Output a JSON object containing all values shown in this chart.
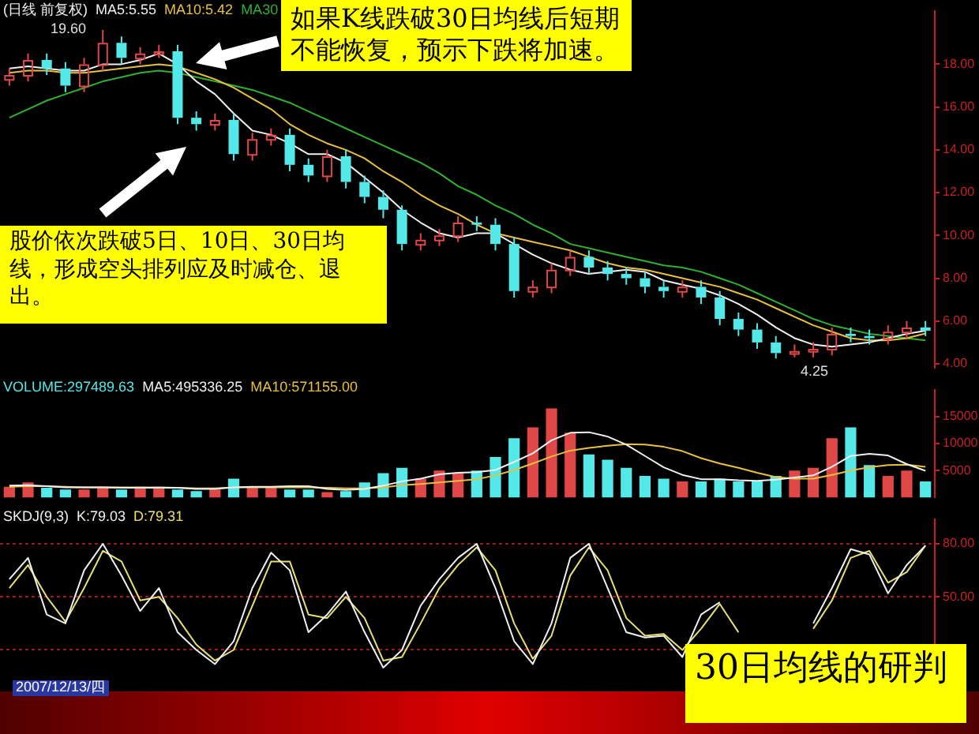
{
  "chart_data": [
    {
      "type": "candlestick",
      "title": "(日线 前复权)",
      "legend": "top left",
      "tick_labels": "y",
      "categories": [
        null,
        null,
        null,
        null,
        null,
        null,
        null,
        null,
        null,
        null,
        null,
        null,
        null,
        null,
        null,
        null,
        null,
        null,
        null,
        null,
        null,
        null,
        null,
        null,
        null,
        null,
        null,
        null,
        null,
        null,
        null,
        null,
        null,
        null,
        null,
        null,
        null,
        null,
        null,
        null,
        null,
        null,
        null,
        null,
        null,
        null,
        null,
        null,
        null,
        null
      ],
      "ohlc": [
        [
          17.3,
          17.8,
          17.0,
          17.5
        ],
        [
          17.5,
          18.5,
          17.2,
          18.2
        ],
        [
          18.2,
          18.5,
          17.5,
          17.8
        ],
        [
          17.8,
          18.1,
          16.7,
          17.0
        ],
        [
          17.0,
          18.3,
          16.7,
          18.0
        ],
        [
          18.0,
          19.6,
          17.7,
          19.0
        ],
        [
          19.0,
          19.3,
          18.0,
          18.3
        ],
        [
          18.3,
          18.8,
          18.0,
          18.5
        ],
        [
          18.5,
          18.9,
          18.3,
          18.6
        ],
        [
          18.6,
          18.9,
          15.2,
          15.5
        ],
        [
          15.5,
          15.8,
          14.9,
          15.2
        ],
        [
          15.2,
          15.7,
          14.9,
          15.4
        ],
        [
          15.4,
          15.7,
          13.5,
          13.8
        ],
        [
          13.8,
          14.8,
          13.5,
          14.5
        ],
        [
          14.5,
          15.0,
          14.2,
          14.7
        ],
        [
          14.7,
          15.0,
          13.0,
          13.3
        ],
        [
          13.3,
          13.6,
          12.5,
          12.8
        ],
        [
          12.8,
          14.0,
          12.5,
          13.7
        ],
        [
          13.7,
          14.0,
          12.2,
          12.5
        ],
        [
          12.5,
          12.8,
          11.5,
          11.8
        ],
        [
          11.8,
          12.1,
          10.8,
          11.2
        ],
        [
          11.2,
          11.4,
          9.3,
          9.6
        ],
        [
          9.6,
          10.1,
          9.3,
          9.8
        ],
        [
          9.8,
          10.3,
          9.5,
          10.0
        ],
        [
          10.0,
          10.9,
          9.7,
          10.6
        ],
        [
          10.6,
          10.9,
          10.2,
          10.5
        ],
        [
          10.5,
          10.8,
          9.3,
          9.6
        ],
        [
          9.6,
          9.9,
          7.1,
          7.4
        ],
        [
          7.4,
          7.9,
          7.1,
          7.6
        ],
        [
          7.6,
          8.7,
          7.3,
          8.4
        ],
        [
          8.4,
          9.3,
          8.1,
          9.0
        ],
        [
          9.0,
          9.3,
          8.2,
          8.5
        ],
        [
          8.5,
          8.8,
          7.9,
          8.2
        ],
        [
          8.2,
          8.5,
          7.7,
          8.0
        ],
        [
          8.0,
          8.3,
          7.3,
          7.6
        ],
        [
          7.6,
          7.9,
          7.1,
          7.4
        ],
        [
          7.4,
          7.9,
          7.1,
          7.6
        ],
        [
          7.6,
          7.9,
          6.8,
          7.1
        ],
        [
          7.1,
          7.4,
          5.8,
          6.1
        ],
        [
          6.1,
          6.4,
          5.3,
          5.6
        ],
        [
          5.6,
          5.9,
          4.7,
          5.0
        ],
        [
          5.0,
          5.3,
          4.25,
          4.5
        ],
        [
          4.5,
          4.9,
          4.3,
          4.6
        ],
        [
          4.6,
          5.0,
          4.3,
          4.7
        ],
        [
          4.7,
          5.7,
          4.4,
          5.4
        ],
        [
          5.4,
          5.7,
          5.0,
          5.3
        ],
        [
          5.3,
          5.6,
          4.9,
          5.2
        ],
        [
          5.2,
          5.8,
          4.9,
          5.5
        ],
        [
          5.5,
          6.0,
          5.2,
          5.7
        ],
        [
          5.7,
          6.0,
          5.3,
          5.55
        ]
      ],
      "colors": [
        "#e04848",
        "#e04848",
        "#54e8e8",
        "#54e8e8",
        "#e04848",
        "#e04848",
        "#54e8e8",
        "#e04848",
        "#e04848",
        "#54e8e8",
        "#54e8e8",
        "#e04848",
        "#54e8e8",
        "#e04848",
        "#e04848",
        "#54e8e8",
        "#54e8e8",
        "#e04848",
        "#54e8e8",
        "#54e8e8",
        "#54e8e8",
        "#54e8e8",
        "#e04848",
        "#e04848",
        "#e04848",
        "#54e8e8",
        "#54e8e8",
        "#54e8e8",
        "#e04848",
        "#e04848",
        "#e04848",
        "#54e8e8",
        "#54e8e8",
        "#54e8e8",
        "#54e8e8",
        "#54e8e8",
        "#e04848",
        "#54e8e8",
        "#54e8e8",
        "#54e8e8",
        "#54e8e8",
        "#54e8e8",
        "#e04848",
        "#e04848",
        "#e04848",
        "#54e8e8",
        "#54e8e8",
        "#e04848",
        "#e04848",
        "#54e8e8"
      ],
      "series": [
        {
          "type": "line",
          "name": "MA5:5.55",
          "color": "#f0f0f0",
          "values": [
            17.8,
            17.9,
            17.8,
            17.7,
            17.7,
            18.0,
            18.0,
            18.2,
            18.5,
            18.0,
            17.2,
            16.6,
            15.7,
            14.9,
            14.7,
            14.3,
            13.8,
            13.8,
            13.4,
            12.7,
            12.0,
            11.2,
            10.6,
            10.1,
            9.9,
            10.1,
            10.1,
            9.6,
            9.1,
            8.7,
            8.4,
            8.2,
            8.3,
            8.4,
            8.3,
            7.9,
            7.7,
            7.5,
            7.2,
            6.8,
            6.3,
            5.7,
            5.2,
            4.9,
            4.8,
            4.9,
            5.0,
            5.2,
            5.4,
            5.55
          ]
        },
        {
          "type": "line",
          "name": "MA10:5.42",
          "color": "#e8c040",
          "values": [
            17.6,
            17.7,
            17.7,
            17.6,
            17.6,
            17.7,
            17.8,
            17.9,
            18.0,
            17.9,
            17.6,
            17.3,
            16.9,
            16.4,
            15.9,
            15.2,
            14.7,
            14.3,
            14.0,
            13.6,
            13.0,
            12.5,
            11.9,
            11.4,
            11.0,
            10.5,
            10.1,
            9.9,
            9.7,
            9.5,
            9.3,
            9.0,
            8.7,
            8.5,
            8.4,
            8.2,
            8.0,
            7.8,
            7.6,
            7.3,
            7.0,
            6.6,
            6.2,
            5.8,
            5.5,
            5.2,
            5.1,
            5.1,
            5.2,
            5.42
          ]
        },
        {
          "type": "line",
          "name": "MA30",
          "color": "#30b030",
          "values": [
            15.5,
            15.9,
            16.3,
            16.6,
            16.9,
            17.2,
            17.4,
            17.6,
            17.7,
            17.6,
            17.4,
            17.2,
            17.0,
            16.8,
            16.5,
            16.2,
            15.8,
            15.4,
            15.0,
            14.6,
            14.2,
            13.8,
            13.4,
            12.9,
            12.3,
            11.9,
            11.4,
            11.0,
            10.5,
            10.1,
            9.6,
            9.4,
            9.2,
            9.0,
            8.8,
            8.6,
            8.5,
            8.3,
            8.0,
            7.7,
            7.3,
            6.9,
            6.5,
            6.1,
            5.8,
            5.6,
            5.4,
            5.3,
            5.2,
            5.1
          ]
        }
      ],
      "ylim": [
        3.8,
        20.5
      ],
      "yticks": [
        {
          "value": 4,
          "label": "4.00"
        },
        {
          "value": 6,
          "label": "6.00"
        },
        {
          "value": 8,
          "label": "8.00"
        },
        {
          "value": 10,
          "label": "10.00"
        },
        {
          "value": 12,
          "label": "12.00"
        },
        {
          "value": 14,
          "label": "14.00"
        },
        {
          "value": 16,
          "label": "16.00"
        },
        {
          "value": 18,
          "label": "18.00"
        }
      ],
      "annotations": [
        "如果K线跌破30日均线后短期不能恢复，预示下跌将加速。",
        "股价依次跌破5日、10日、30日均线，形成空头排列应及时减仓、退出。",
        "19.60",
        "4.25"
      ]
    },
    {
      "type": "bar",
      "legend": "top left",
      "tick_labels": "y",
      "categories": [
        null,
        null,
        null,
        null,
        null,
        null,
        null,
        null,
        null,
        null,
        null,
        null,
        null,
        null,
        null,
        null,
        null,
        null,
        null,
        null,
        null,
        null,
        null,
        null,
        null,
        null,
        null,
        null,
        null,
        null,
        null,
        null,
        null,
        null,
        null,
        null,
        null,
        null,
        null,
        null,
        null,
        null,
        null,
        null,
        null,
        null,
        null,
        null,
        null,
        null
      ],
      "series": [
        {
          "type": "bar",
          "name": "VOLUME:297489.63",
          "color": "#54e8e8",
          "colors": [
            "#e04848",
            "#e04848",
            "#54e8e8",
            "#54e8e8",
            "#e04848",
            "#e04848",
            "#54e8e8",
            "#e04848",
            "#e04848",
            "#54e8e8",
            "#54e8e8",
            "#e04848",
            "#54e8e8",
            "#e04848",
            "#e04848",
            "#54e8e8",
            "#54e8e8",
            "#e04848",
            "#54e8e8",
            "#54e8e8",
            "#54e8e8",
            "#54e8e8",
            "#e04848",
            "#e04848",
            "#e04848",
            "#54e8e8",
            "#54e8e8",
            "#54e8e8",
            "#e04848",
            "#e04848",
            "#e04848",
            "#54e8e8",
            "#54e8e8",
            "#54e8e8",
            "#54e8e8",
            "#54e8e8",
            "#e04848",
            "#54e8e8",
            "#54e8e8",
            "#54e8e8",
            "#54e8e8",
            "#54e8e8",
            "#e04848",
            "#e04848",
            "#e04848",
            "#54e8e8",
            "#54e8e8",
            "#e04848",
            "#e04848",
            "#54e8e8"
          ],
          "values": [
            2000,
            2800,
            1800,
            1500,
            1500,
            2000,
            1500,
            2000,
            2000,
            1500,
            1200,
            1500,
            3500,
            2000,
            2000,
            1500,
            1500,
            1000,
            1200,
            2800,
            4500,
            5500,
            3500,
            5000,
            4500,
            5000,
            7500,
            11000,
            13000,
            16500,
            12000,
            8000,
            7000,
            5500,
            4000,
            3500,
            3000,
            3000,
            3500,
            3000,
            3000,
            4000,
            5000,
            5500,
            11000,
            13000,
            6000,
            4000,
            5000,
            3000
          ]
        },
        {
          "type": "line",
          "name": "MA5:495336.25",
          "color": "#f0f0f0",
          "values": [
            2200,
            2300,
            2100,
            1900,
            1900,
            1900,
            1800,
            1800,
            1800,
            1800,
            1600,
            1600,
            1900,
            2000,
            2000,
            2100,
            2100,
            1600,
            1400,
            1600,
            2200,
            3000,
            3500,
            4300,
            4600,
            4700,
            5100,
            6600,
            8200,
            10600,
            12000,
            12100,
            11300,
            9800,
            7700,
            5600,
            4200,
            3400,
            3400,
            3200,
            3100,
            3300,
            3700,
            4100,
            5700,
            7700,
            8100,
            7800,
            6200,
            4950
          ]
        },
        {
          "type": "line",
          "name": "MA10:571155.00",
          "color": "#e8c040",
          "values": [
            2000,
            2100,
            2100,
            2000,
            1900,
            1900,
            1900,
            1900,
            1900,
            1800,
            1700,
            1700,
            1900,
            1900,
            1900,
            1900,
            1900,
            1800,
            1700,
            1700,
            1900,
            2300,
            2500,
            2800,
            3100,
            3400,
            4100,
            5100,
            6300,
            7600,
            8700,
            9200,
            9600,
            9900,
            9800,
            9400,
            8600,
            7300,
            6300,
            5500,
            4600,
            3800,
            3500,
            3500,
            4200,
            5000,
            5600,
            6000,
            6100,
            5700
          ]
        }
      ],
      "ylim": [
        0,
        20000
      ],
      "yticks": [
        5000,
        10000,
        15000
      ]
    },
    {
      "type": "line",
      "title": "SKDJ(9,3)",
      "legend": "top left",
      "tick_labels": "y",
      "grid": "y",
      "categories": [
        null,
        null,
        null,
        null,
        null,
        null,
        null,
        null,
        null,
        null,
        null,
        null,
        null,
        null,
        null,
        null,
        null,
        null,
        null,
        null,
        null,
        null,
        null,
        null,
        null,
        null,
        null,
        null,
        null,
        null,
        null,
        null,
        null,
        null,
        null,
        null,
        null,
        null,
        null,
        null,
        null,
        null,
        null,
        null,
        null,
        null,
        null,
        null,
        null,
        null
      ],
      "series": [
        {
          "name": "K:79.03",
          "color": "#f0f0f0",
          "values": [
            60,
            72,
            40,
            35,
            65,
            80,
            62,
            42,
            55,
            30,
            20,
            12,
            25,
            55,
            75,
            65,
            30,
            40,
            53,
            30,
            10,
            20,
            45,
            60,
            72,
            80,
            55,
            25,
            12,
            35,
            72,
            80,
            55,
            30,
            27,
            28,
            16,
            40,
            47,
            null,
            null,
            null,
            null,
            35,
            55,
            77,
            74,
            52,
            68,
            79
          ]
        },
        {
          "name": "D:79.31",
          "color": "#e8e070",
          "values": [
            55,
            68,
            50,
            36,
            55,
            76,
            70,
            48,
            50,
            38,
            23,
            14,
            20,
            45,
            70,
            70,
            40,
            38,
            50,
            38,
            14,
            16,
            35,
            55,
            68,
            78,
            65,
            35,
            15,
            28,
            62,
            78,
            65,
            38,
            28,
            29,
            20,
            32,
            46,
            30,
            null,
            null,
            null,
            32,
            48,
            72,
            76,
            58,
            64,
            79
          ]
        }
      ],
      "ylim": [
        8,
        94
      ],
      "yticks": [
        {
          "value": 20,
          "label": null
        },
        {
          "value": 50,
          "label": "50.00"
        },
        {
          "value": 80,
          "label": "80.00"
        }
      ],
      "annotations": [
        "30日均线的研判",
        "2007/12/13/四"
      ]
    }
  ]
}
